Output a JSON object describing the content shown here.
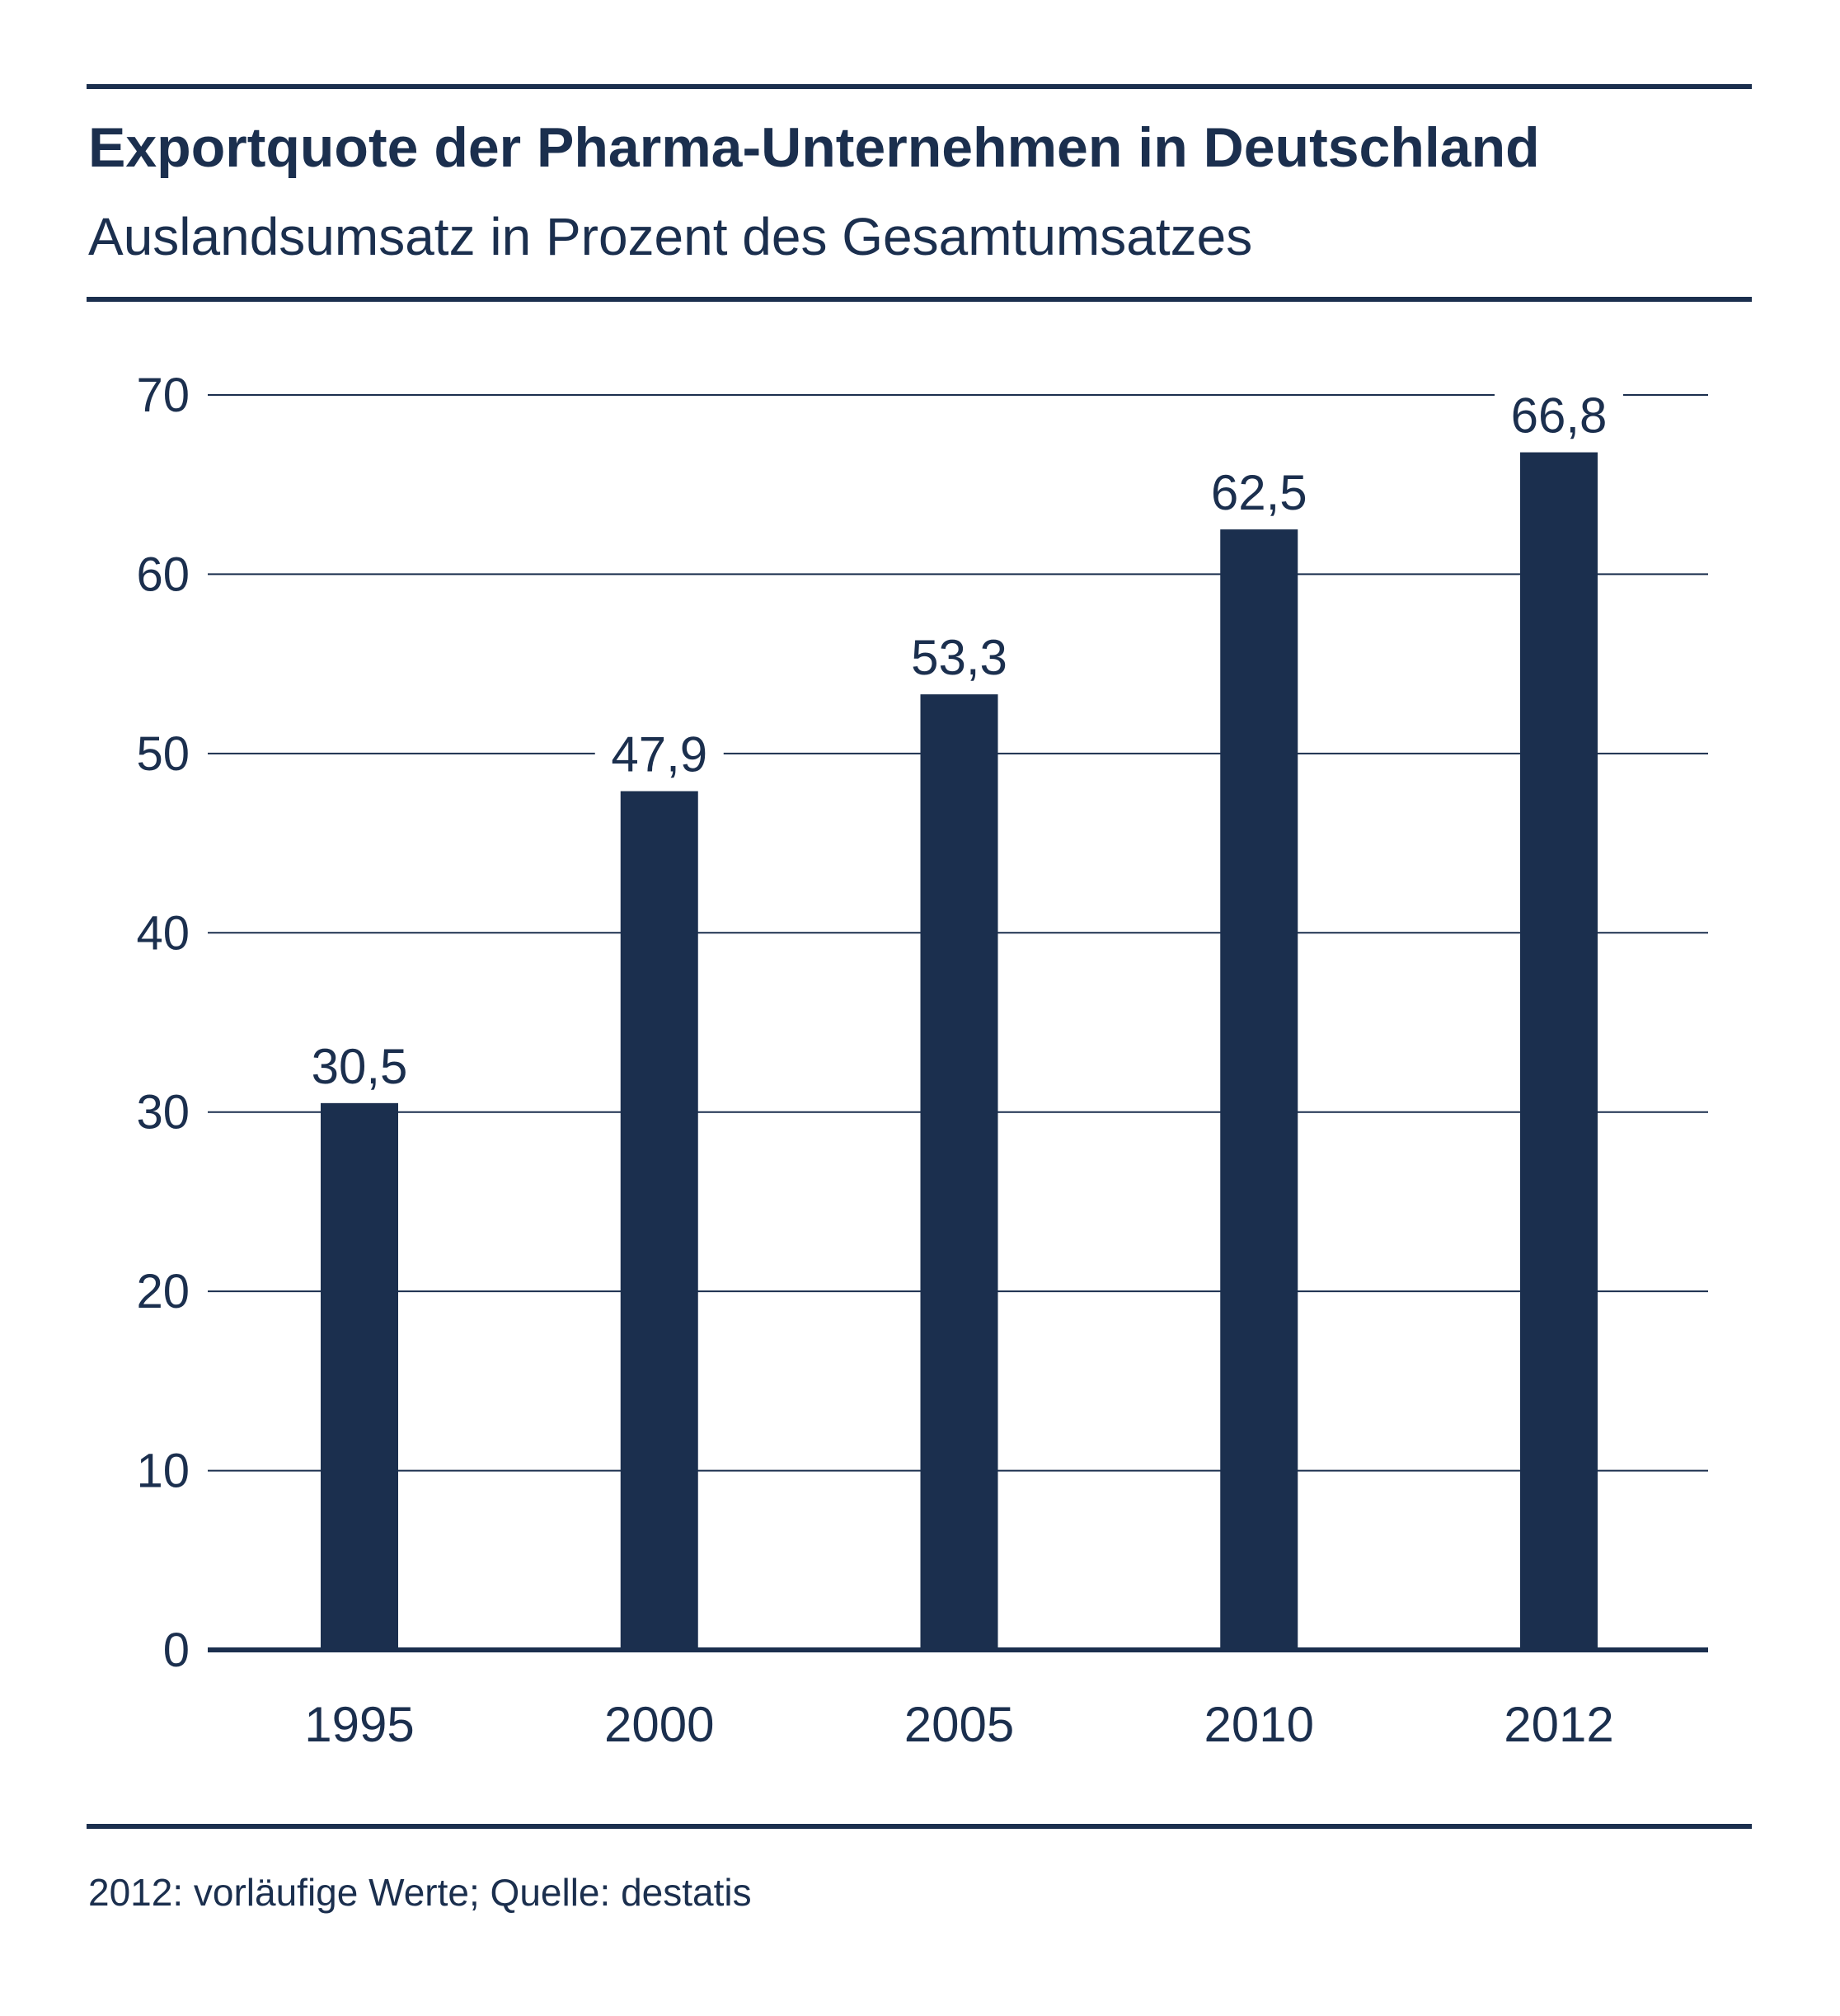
{
  "title": "Exportquote der Pharma-Unternehmen in Deutschland",
  "subtitle": "Auslandsumsatz in Prozent des Gesamtumsatzes",
  "footnote": "2012: vorläufige Werte; Quelle: destatis",
  "colors": {
    "bar": "#1b2f4e",
    "text": "#1b2f4e",
    "grid": "#1b2f4e",
    "background": "#ffffff"
  },
  "chart_data": {
    "type": "bar",
    "categories": [
      "1995",
      "2000",
      "2005",
      "2010",
      "2012"
    ],
    "values": [
      30.5,
      47.9,
      53.3,
      62.5,
      66.8
    ],
    "value_labels": [
      "30,5",
      "47,9",
      "53,3",
      "62,5",
      "66,8"
    ],
    "ylim": [
      0,
      70
    ],
    "yticks": [
      0,
      10,
      20,
      30,
      40,
      50,
      60,
      70
    ],
    "grid": true,
    "xlabel": "",
    "ylabel": ""
  }
}
